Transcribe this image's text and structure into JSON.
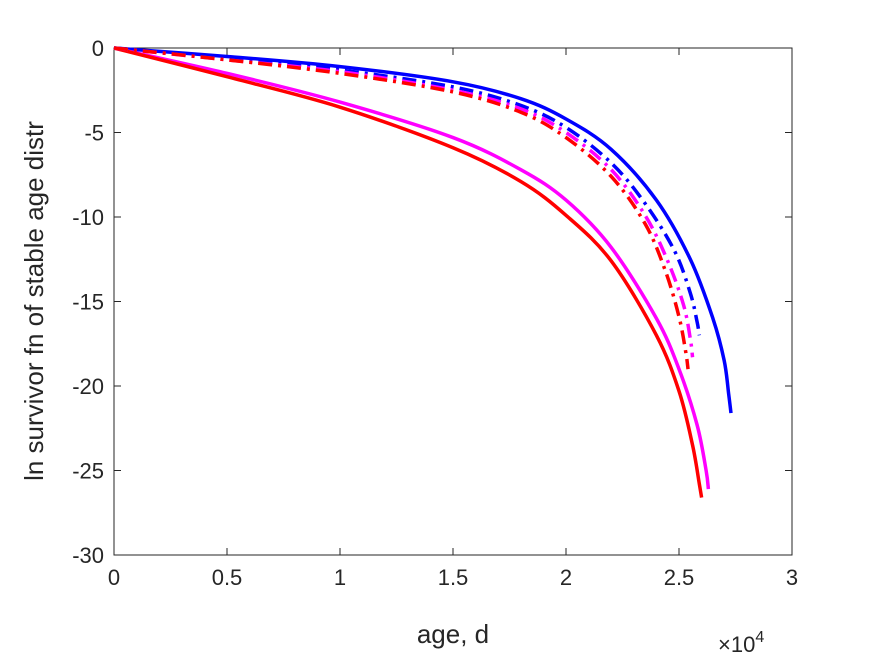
{
  "chart_data": {
    "type": "line",
    "xlabel": "age, d",
    "ylabel": "ln survivor fn of stable age distr",
    "x_multiplier_label": "×10",
    "x_multiplier_exponent": "4",
    "xlim": [
      0,
      3
    ],
    "ylim": [
      -30,
      0
    ],
    "x_ticks": [
      "0",
      "0.5",
      "1",
      "1.5",
      "2",
      "2.5",
      "3"
    ],
    "y_ticks": [
      "0",
      "-5",
      "-10",
      "-15",
      "-20",
      "-25",
      "-30"
    ],
    "grid": false,
    "series": [
      {
        "color": "#0000ff",
        "dash": "solid",
        "x": [
          0,
          0.5,
          1,
          1.5,
          1.8,
          2.0,
          2.2,
          2.4,
          2.55,
          2.65,
          2.7,
          2.72,
          2.73
        ],
        "y": [
          0,
          -0.5,
          -1.1,
          -2.0,
          -3.0,
          -4.2,
          -6.0,
          -9.0,
          -12.5,
          -16.0,
          -18.5,
          -20.5,
          -21.6
        ]
      },
      {
        "color": "#ff00ff",
        "dash": "solid",
        "x": [
          0,
          0.5,
          1,
          1.5,
          1.8,
          2.0,
          2.2,
          2.4,
          2.5,
          2.58,
          2.62,
          2.63
        ],
        "y": [
          0,
          -1.5,
          -3.2,
          -5.3,
          -7.2,
          -9.0,
          -11.8,
          -16.0,
          -19.0,
          -22.3,
          -25.0,
          -26.1
        ]
      },
      {
        "color": "#ff0000",
        "dash": "solid",
        "x": [
          0,
          0.5,
          1,
          1.5,
          1.8,
          2.0,
          2.2,
          2.4,
          2.5,
          2.56,
          2.59,
          2.6
        ],
        "y": [
          0,
          -1.7,
          -3.5,
          -5.9,
          -7.9,
          -9.9,
          -12.6,
          -17.0,
          -20.3,
          -23.5,
          -25.8,
          -26.6
        ]
      },
      {
        "color": "#0000ff",
        "dash": "dashdot",
        "x": [
          0,
          0.5,
          1,
          1.5,
          1.8,
          2.0,
          2.2,
          2.35,
          2.48,
          2.55,
          2.58,
          2.59
        ],
        "y": [
          0,
          -0.6,
          -1.3,
          -2.3,
          -3.4,
          -4.7,
          -6.8,
          -9.2,
          -12.0,
          -14.5,
          -16.2,
          -17.0
        ]
      },
      {
        "color": "#ff00ff",
        "dash": "dashdot",
        "x": [
          0,
          0.5,
          1,
          1.5,
          1.8,
          2.0,
          2.2,
          2.35,
          2.45,
          2.52,
          2.55,
          2.56
        ],
        "y": [
          0,
          -0.7,
          -1.4,
          -2.5,
          -3.6,
          -5.0,
          -7.2,
          -9.9,
          -12.6,
          -15.2,
          -17.2,
          -18.3
        ]
      },
      {
        "color": "#ff0000",
        "dash": "dashdot",
        "x": [
          0,
          0.5,
          1,
          1.5,
          1.8,
          2.0,
          2.2,
          2.35,
          2.44,
          2.5,
          2.53,
          2.54
        ],
        "y": [
          0,
          -0.7,
          -1.5,
          -2.6,
          -3.8,
          -5.3,
          -7.6,
          -10.4,
          -13.2,
          -15.9,
          -18.0,
          -19.0
        ]
      }
    ]
  }
}
